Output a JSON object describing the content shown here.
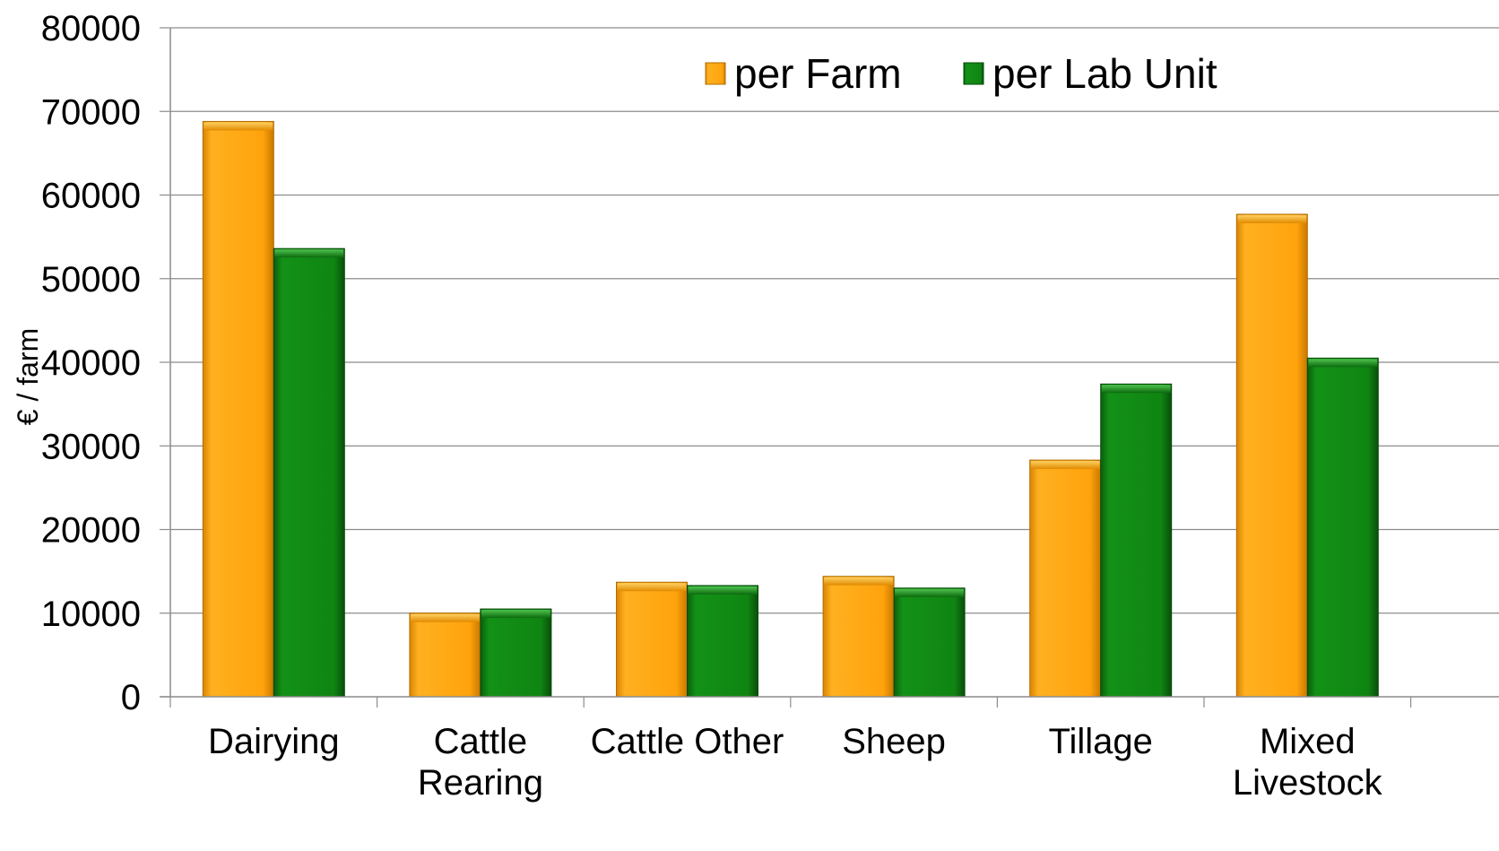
{
  "chart_data": {
    "type": "bar",
    "ylabel": "€ / farm",
    "ylim": [
      0,
      80000
    ],
    "yticks": [
      0,
      10000,
      20000,
      30000,
      40000,
      50000,
      60000,
      70000,
      80000
    ],
    "grid": true,
    "legend_position": "top-right",
    "categories": [
      [
        "Dairying"
      ],
      [
        "Cattle",
        "Rearing"
      ],
      [
        "Cattle Other"
      ],
      [
        "Sheep"
      ],
      [
        "Tillage"
      ],
      [
        "Mixed",
        "Livestock"
      ]
    ],
    "series": [
      {
        "name": "per Farm",
        "color": "#F9A10A",
        "values": [
          68800,
          10000,
          13700,
          14400,
          28300,
          57700
        ]
      },
      {
        "name": "per Lab Unit",
        "color": "#0F7D11",
        "values": [
          53600,
          10500,
          13300,
          13000,
          37400,
          40500
        ]
      }
    ]
  }
}
